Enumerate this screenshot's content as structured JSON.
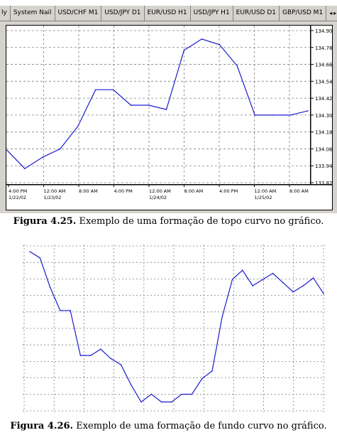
{
  "tabs": [
    {
      "label": "ly"
    },
    {
      "label": "System Nail"
    },
    {
      "label": "USD/CHF M1"
    },
    {
      "label": "USD/JPY D1"
    },
    {
      "label": "EUR/USD H1"
    },
    {
      "label": "USD/JPY H1"
    },
    {
      "label": "EUR/USD D1"
    },
    {
      "label": "GBP/USD M1"
    }
  ],
  "tab_arrows": {
    "left": "◂",
    "right": "▸"
  },
  "caption1": {
    "label": "Figura 4.25.",
    "text": " Exemplo de uma formação de topo curvo no gráfico."
  },
  "caption2": {
    "label": "Figura 4.26.",
    "text": " Exemplo de uma formação de fundo curvo no gráfico."
  },
  "colors": {
    "line": "#1c1ccd",
    "grid": "#808080",
    "price_line": "#2a2ad8"
  },
  "chart_data": [
    {
      "type": "line",
      "title": "",
      "xlabel": "",
      "ylabel": "",
      "y_ticks": [
        "134.90",
        "134.78",
        "134.66",
        "134.54",
        "134.42",
        "134.30",
        "134.18",
        "134.06",
        "133.94",
        "133.82"
      ],
      "ylim": [
        133.82,
        134.9
      ],
      "x_ticks": [
        {
          "time": "4:00 PM",
          "date": "1/22/02"
        },
        {
          "time": "12:00 AM",
          "date": "1/23/02"
        },
        {
          "time": "8:00 AM",
          "date": ""
        },
        {
          "time": "4:00 PM",
          "date": ""
        },
        {
          "time": "12:00 AM",
          "date": "1/24/02"
        },
        {
          "time": "8:00 AM",
          "date": ""
        },
        {
          "time": "4:00 PM",
          "date": ""
        },
        {
          "time": "12:00 AM",
          "date": "1/25/02"
        },
        {
          "time": "8:00 AM",
          "date": ""
        }
      ],
      "grid": true,
      "x": [
        0,
        1,
        2,
        3,
        4,
        5,
        6,
        7,
        8,
        9,
        10,
        11,
        12,
        13,
        14,
        15,
        16,
        17
      ],
      "values": [
        134.05,
        133.92,
        134.0,
        134.06,
        134.22,
        134.48,
        134.48,
        134.37,
        134.37,
        134.34,
        134.76,
        134.84,
        134.8,
        134.65,
        134.3,
        134.3,
        134.3,
        134.33
      ]
    },
    {
      "type": "line",
      "title": "",
      "xlabel": "",
      "ylabel": "",
      "grid": true,
      "ylim": [
        0,
        100
      ],
      "x": [
        0,
        1,
        2,
        3,
        4,
        5,
        6,
        7,
        8,
        9,
        10,
        11,
        12,
        13,
        14,
        15,
        16,
        17,
        18,
        19,
        20,
        21,
        22,
        23,
        24,
        25,
        26,
        27,
        28,
        29
      ],
      "values": [
        100,
        96,
        77,
        62,
        62,
        33,
        33,
        37,
        31,
        27,
        14,
        3,
        8,
        3,
        3,
        8,
        8,
        18,
        23,
        58,
        82,
        88,
        78,
        82,
        86,
        80,
        74,
        78,
        83,
        73
      ]
    }
  ]
}
